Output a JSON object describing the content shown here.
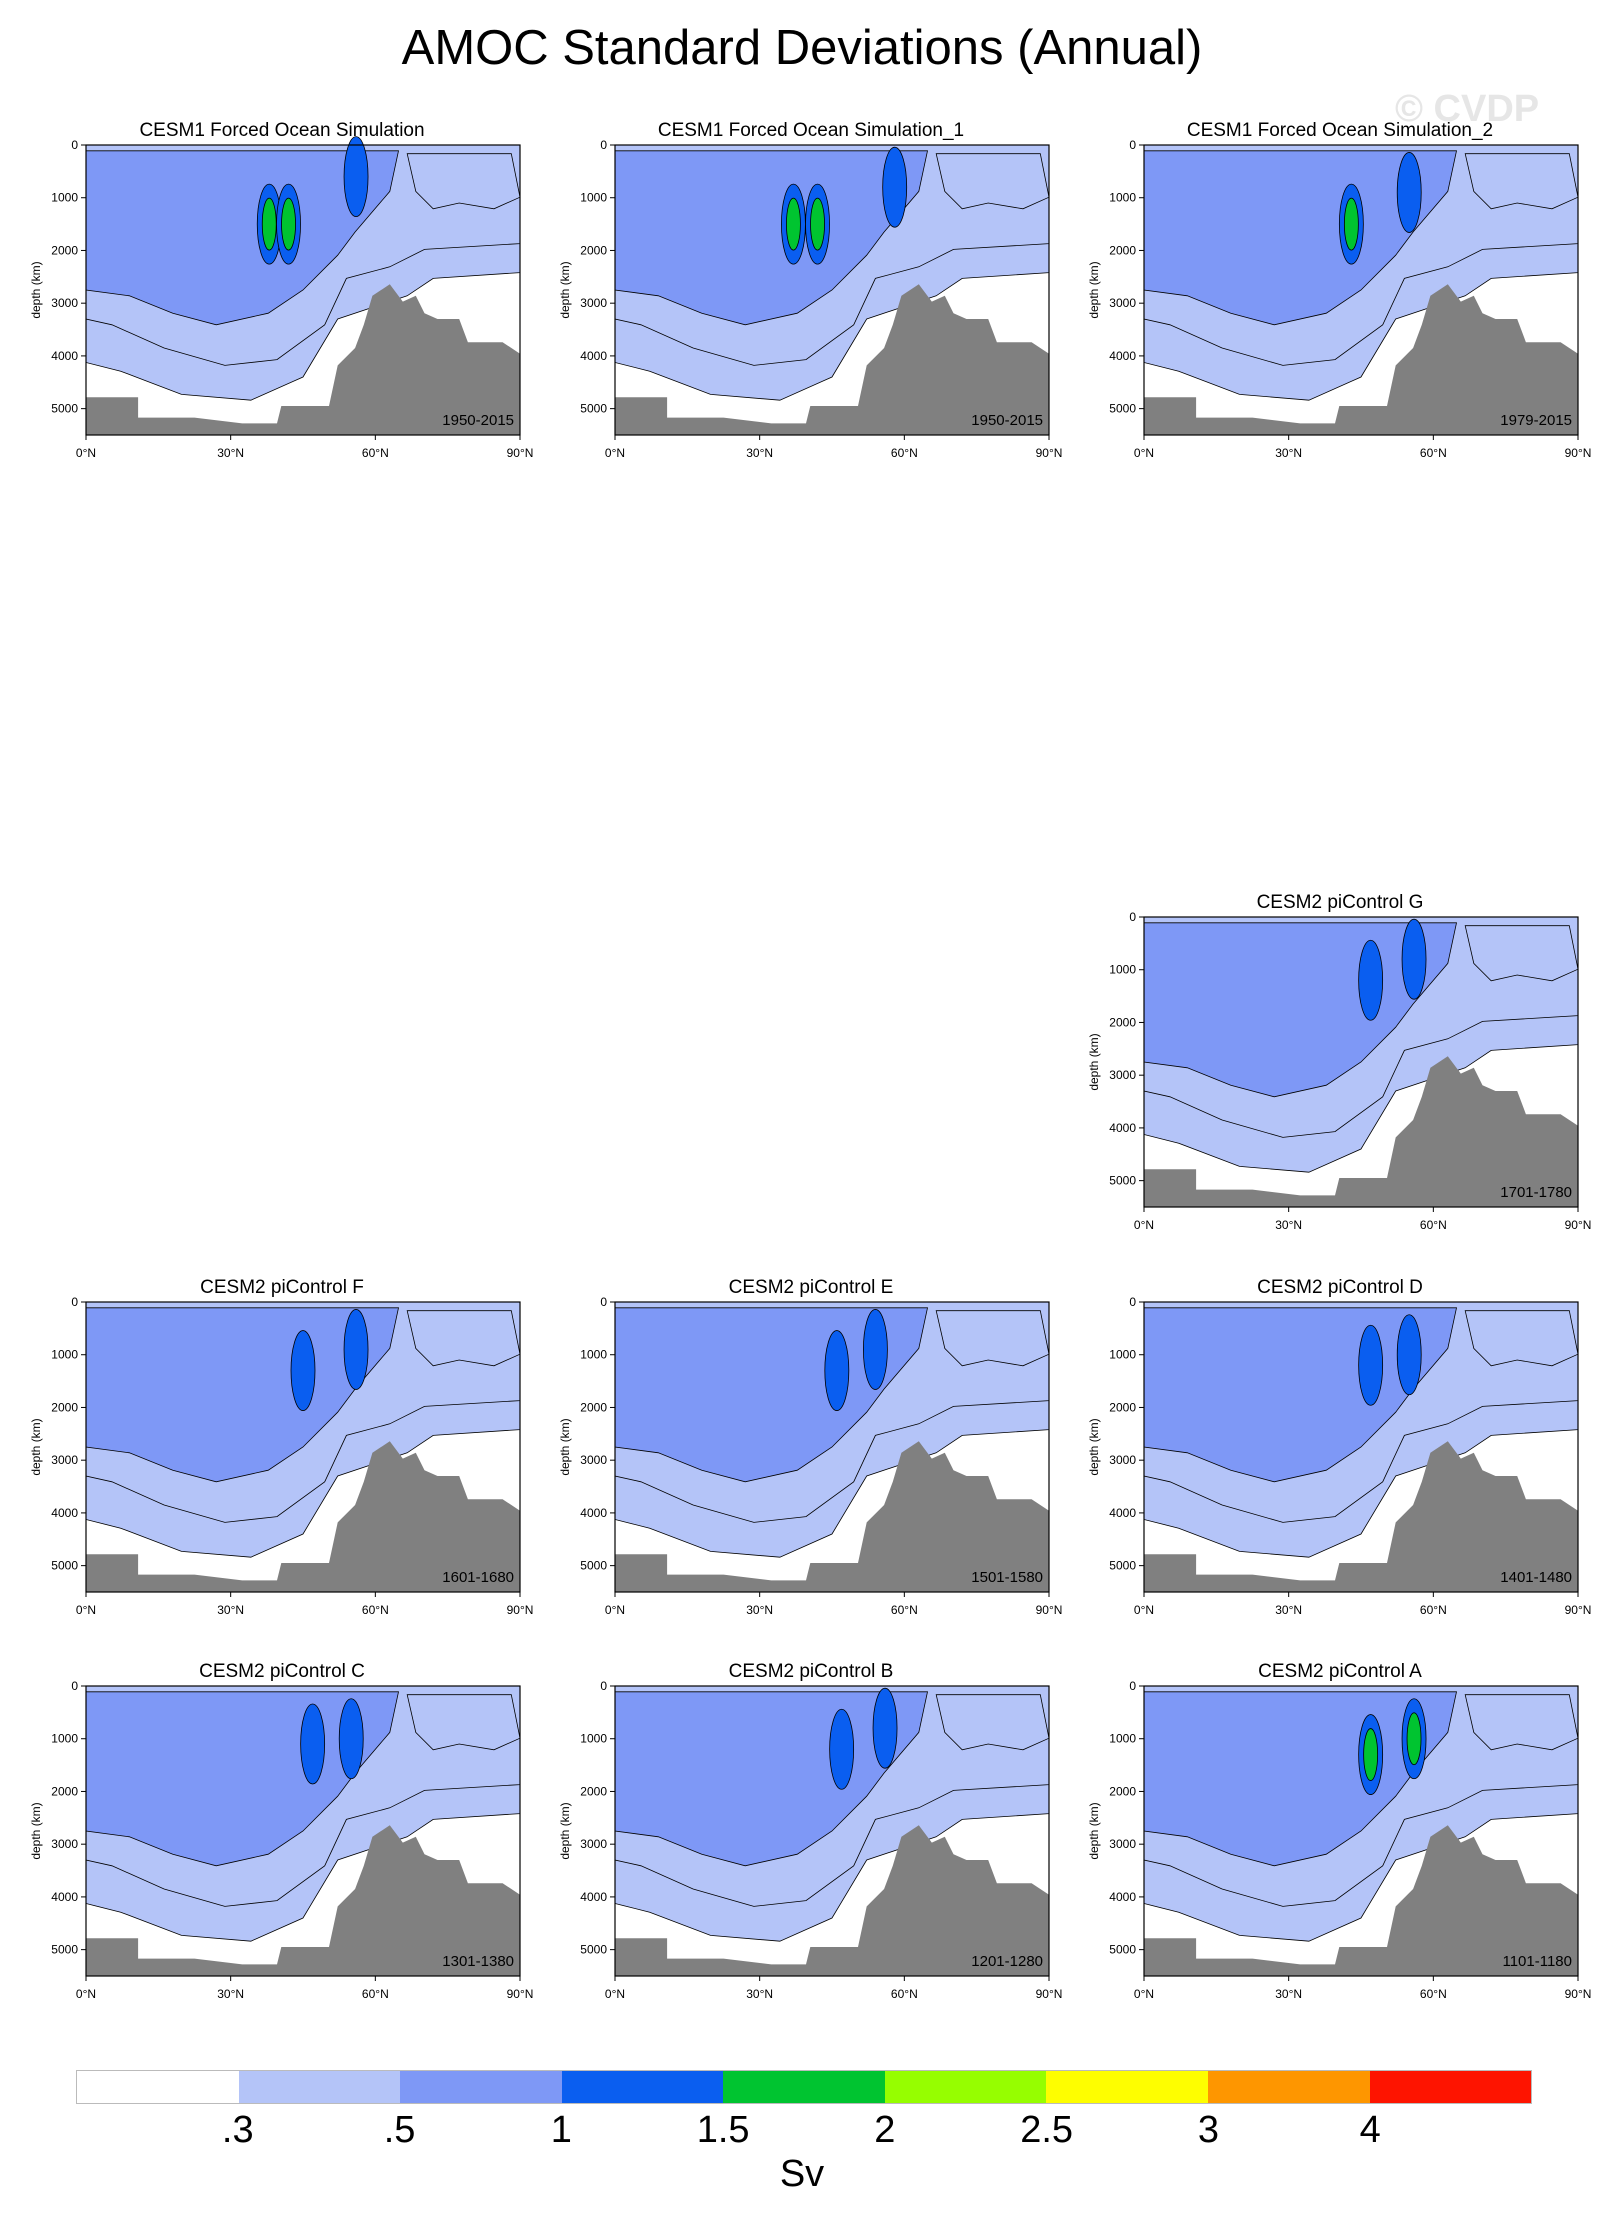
{
  "figure": {
    "title": "AMOC Standard Deviations (Annual)",
    "watermark": "© CVDP"
  },
  "colors": {
    "levels": [
      "#ffffff",
      "#b4c4f8",
      "#7e98f6",
      "#0a5ef0",
      "#00c430",
      "#96fe00",
      "#fefe00",
      "#fe9600",
      "#fe1400"
    ],
    "land": "#808080",
    "contour_line": "#000000"
  },
  "colorbar": {
    "labels": [
      ".3",
      ".5",
      "1",
      "1.5",
      "2",
      "2.5",
      "3",
      "4"
    ],
    "unit": "Sv"
  },
  "chart_data": [
    {
      "type": "heatmap",
      "title": "CESM1 Forced Ocean Simulation",
      "period": "1950-2015",
      "ylabel": "depth (km)",
      "xlim": [
        0,
        90
      ],
      "ylim": [
        5500,
        0
      ],
      "x_ticks": [
        "0°N",
        "30°N",
        "60°N",
        "90°N"
      ],
      "y_ticks": [
        "0",
        "1000",
        "2000",
        "3000",
        "4000",
        "5000"
      ],
      "contour_levels": [
        0.3,
        0.5,
        1,
        1.5,
        2,
        2.5,
        3,
        4
      ],
      "max_level_index": 4,
      "lobes": [
        {
          "lat": 38,
          "depth": 1500,
          "level": 4
        },
        {
          "lat": 42,
          "depth": 1500,
          "level": 4
        },
        {
          "lat": 56,
          "depth": 600,
          "level": 3
        }
      ]
    },
    {
      "type": "heatmap",
      "title": "CESM1 Forced Ocean Simulation_1",
      "period": "1950-2015",
      "ylabel": "depth (km)",
      "xlim": [
        0,
        90
      ],
      "ylim": [
        5500,
        0
      ],
      "x_ticks": [
        "0°N",
        "30°N",
        "60°N",
        "90°N"
      ],
      "y_ticks": [
        "0",
        "1000",
        "2000",
        "3000",
        "4000",
        "5000"
      ],
      "contour_levels": [
        0.3,
        0.5,
        1,
        1.5,
        2,
        2.5,
        3,
        4
      ],
      "max_level_index": 4,
      "lobes": [
        {
          "lat": 37,
          "depth": 1500,
          "level": 4
        },
        {
          "lat": 42,
          "depth": 1500,
          "level": 4
        },
        {
          "lat": 58,
          "depth": 800,
          "level": 3
        }
      ]
    },
    {
      "type": "heatmap",
      "title": "CESM1 Forced Ocean Simulation_2",
      "period": "1979-2015",
      "ylabel": "depth (km)",
      "xlim": [
        0,
        90
      ],
      "ylim": [
        5500,
        0
      ],
      "x_ticks": [
        "0°N",
        "30°N",
        "60°N",
        "90°N"
      ],
      "y_ticks": [
        "0",
        "1000",
        "2000",
        "3000",
        "4000",
        "5000"
      ],
      "contour_levels": [
        0.3,
        0.5,
        1,
        1.5,
        2,
        2.5,
        3,
        4
      ],
      "max_level_index": 4,
      "lobes": [
        {
          "lat": 43,
          "depth": 1500,
          "level": 4
        },
        {
          "lat": 55,
          "depth": 900,
          "level": 3
        }
      ]
    },
    {
      "type": "heatmap",
      "title": "CESM2 piControl G",
      "period": "1701-1780",
      "ylabel": "depth (km)",
      "xlim": [
        0,
        90
      ],
      "ylim": [
        5500,
        0
      ],
      "x_ticks": [
        "0°N",
        "30°N",
        "60°N",
        "90°N"
      ],
      "y_ticks": [
        "0",
        "1000",
        "2000",
        "3000",
        "4000",
        "5000"
      ],
      "contour_levels": [
        0.3,
        0.5,
        1,
        1.5,
        2,
        2.5,
        3,
        4
      ],
      "max_level_index": 3,
      "lobes": [
        {
          "lat": 47,
          "depth": 1200,
          "level": 3
        },
        {
          "lat": 56,
          "depth": 800,
          "level": 3
        }
      ]
    },
    {
      "type": "heatmap",
      "title": "CESM2 piControl F",
      "period": "1601-1680",
      "ylabel": "depth (km)",
      "xlim": [
        0,
        90
      ],
      "ylim": [
        5500,
        0
      ],
      "x_ticks": [
        "0°N",
        "30°N",
        "60°N",
        "90°N"
      ],
      "y_ticks": [
        "0",
        "1000",
        "2000",
        "3000",
        "4000",
        "5000"
      ],
      "contour_levels": [
        0.3,
        0.5,
        1,
        1.5,
        2,
        2.5,
        3,
        4
      ],
      "max_level_index": 3,
      "lobes": [
        {
          "lat": 45,
          "depth": 1300,
          "level": 3
        },
        {
          "lat": 56,
          "depth": 900,
          "level": 3
        }
      ]
    },
    {
      "type": "heatmap",
      "title": "CESM2 piControl E",
      "period": "1501-1580",
      "ylabel": "depth (km)",
      "xlim": [
        0,
        90
      ],
      "ylim": [
        5500,
        0
      ],
      "x_ticks": [
        "0°N",
        "30°N",
        "60°N",
        "90°N"
      ],
      "y_ticks": [
        "0",
        "1000",
        "2000",
        "3000",
        "4000",
        "5000"
      ],
      "contour_levels": [
        0.3,
        0.5,
        1,
        1.5,
        2,
        2.5,
        3,
        4
      ],
      "max_level_index": 3,
      "lobes": [
        {
          "lat": 46,
          "depth": 1300,
          "level": 3
        },
        {
          "lat": 54,
          "depth": 900,
          "level": 3
        }
      ]
    },
    {
      "type": "heatmap",
      "title": "CESM2 piControl D",
      "period": "1401-1480",
      "ylabel": "depth (km)",
      "xlim": [
        0,
        90
      ],
      "ylim": [
        5500,
        0
      ],
      "x_ticks": [
        "0°N",
        "30°N",
        "60°N",
        "90°N"
      ],
      "y_ticks": [
        "0",
        "1000",
        "2000",
        "3000",
        "4000",
        "5000"
      ],
      "contour_levels": [
        0.3,
        0.5,
        1,
        1.5,
        2,
        2.5,
        3,
        4
      ],
      "max_level_index": 3,
      "lobes": [
        {
          "lat": 47,
          "depth": 1200,
          "level": 3
        },
        {
          "lat": 55,
          "depth": 1000,
          "level": 3
        }
      ]
    },
    {
      "type": "heatmap",
      "title": "CESM2 piControl C",
      "period": "1301-1380",
      "ylabel": "depth (km)",
      "xlim": [
        0,
        90
      ],
      "ylim": [
        5500,
        0
      ],
      "x_ticks": [
        "0°N",
        "30°N",
        "60°N",
        "90°N"
      ],
      "y_ticks": [
        "0",
        "1000",
        "2000",
        "3000",
        "4000",
        "5000"
      ],
      "contour_levels": [
        0.3,
        0.5,
        1,
        1.5,
        2,
        2.5,
        3,
        4
      ],
      "max_level_index": 3,
      "lobes": [
        {
          "lat": 47,
          "depth": 1100,
          "level": 3
        },
        {
          "lat": 55,
          "depth": 1000,
          "level": 3
        }
      ]
    },
    {
      "type": "heatmap",
      "title": "CESM2 piControl B",
      "period": "1201-1280",
      "ylabel": "depth (km)",
      "xlim": [
        0,
        90
      ],
      "ylim": [
        5500,
        0
      ],
      "x_ticks": [
        "0°N",
        "30°N",
        "60°N",
        "90°N"
      ],
      "y_ticks": [
        "0",
        "1000",
        "2000",
        "3000",
        "4000",
        "5000"
      ],
      "contour_levels": [
        0.3,
        0.5,
        1,
        1.5,
        2,
        2.5,
        3,
        4
      ],
      "max_level_index": 3,
      "lobes": [
        {
          "lat": 47,
          "depth": 1200,
          "level": 3
        },
        {
          "lat": 56,
          "depth": 800,
          "level": 3
        }
      ]
    },
    {
      "type": "heatmap",
      "title": "CESM2 piControl A",
      "period": "1101-1180",
      "ylabel": "depth (km)",
      "xlim": [
        0,
        90
      ],
      "ylim": [
        5500,
        0
      ],
      "x_ticks": [
        "0°N",
        "30°N",
        "60°N",
        "90°N"
      ],
      "y_ticks": [
        "0",
        "1000",
        "2000",
        "3000",
        "4000",
        "5000"
      ],
      "contour_levels": [
        0.3,
        0.5,
        1,
        1.5,
        2,
        2.5,
        3,
        4
      ],
      "max_level_index": 4,
      "lobes": [
        {
          "lat": 47,
          "depth": 1300,
          "level": 4
        },
        {
          "lat": 56,
          "depth": 1000,
          "level": 4
        }
      ]
    }
  ]
}
